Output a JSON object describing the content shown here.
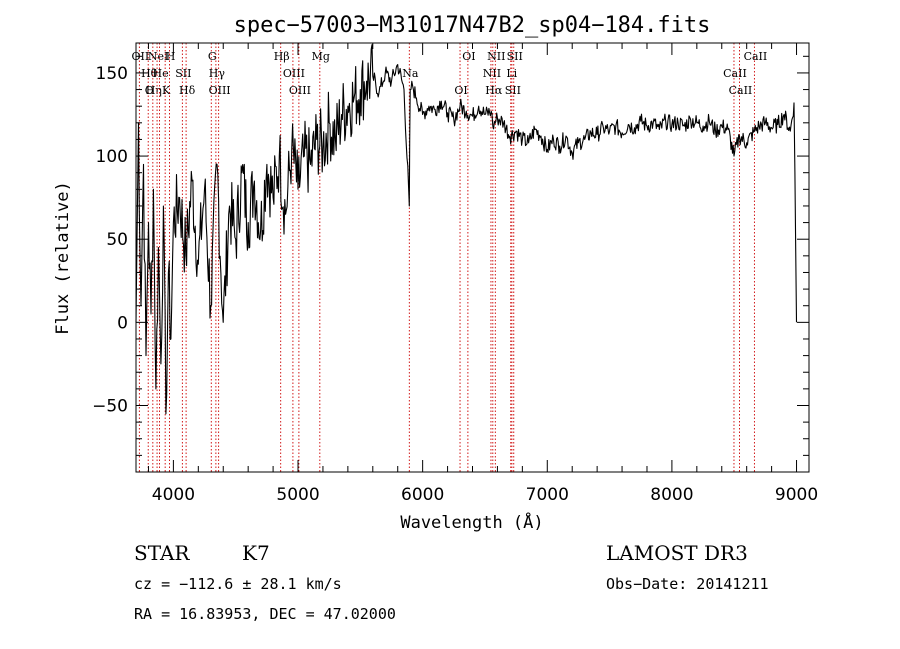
{
  "chart_data": {
    "type": "line",
    "title": "spec−57003−M31017N47B2_sp04−184.fits",
    "xlabel": "Wavelength (Å)",
    "ylabel": "Flux (relative)",
    "xlim": [
      3700,
      9100
    ],
    "ylim": [
      -90,
      168
    ],
    "x_ticks": [
      4000,
      5000,
      6000,
      7000,
      8000,
      9000
    ],
    "x_tick_labels": [
      "4000",
      "5000",
      "6000",
      "7000",
      "8000",
      "9000"
    ],
    "y_ticks": [
      -50,
      0,
      50,
      100,
      150
    ],
    "y_tick_labels": [
      "−50",
      "0",
      "50",
      "100",
      "150"
    ],
    "line_color": "#000000",
    "marker_color": "#cc0000",
    "series": [
      {
        "name": "flux",
        "x": [
          3700,
          3720,
          3740,
          3760,
          3780,
          3800,
          3820,
          3840,
          3860,
          3880,
          3900,
          3920,
          3940,
          3960,
          3980,
          4000,
          4050,
          4100,
          4150,
          4200,
          4250,
          4300,
          4350,
          4400,
          4450,
          4500,
          4550,
          4600,
          4650,
          4700,
          4750,
          4800,
          4850,
          4900,
          4950,
          5000,
          5050,
          5100,
          5150,
          5200,
          5250,
          5300,
          5350,
          5400,
          5450,
          5500,
          5550,
          5600,
          5650,
          5700,
          5750,
          5800,
          5850,
          5893,
          5900,
          5920,
          5950,
          6000,
          6050,
          6100,
          6150,
          6200,
          6250,
          6300,
          6350,
          6400,
          6450,
          6500,
          6550,
          6563,
          6600,
          6650,
          6700,
          6750,
          6800,
          6850,
          6900,
          6950,
          7000,
          7050,
          7100,
          7150,
          7200,
          7250,
          7300,
          7350,
          7400,
          7450,
          7500,
          7550,
          7600,
          7650,
          7700,
          7750,
          7800,
          7850,
          7900,
          7950,
          8000,
          8050,
          8100,
          8150,
          8200,
          8250,
          8300,
          8350,
          8400,
          8450,
          8498,
          8542,
          8600,
          8662,
          8700,
          8750,
          8800,
          8850,
          8900,
          8950,
          8980,
          9000
        ],
        "values": [
          0,
          120,
          10,
          95,
          -20,
          60,
          5,
          80,
          -40,
          45,
          -25,
          70,
          -55,
          30,
          -10,
          60,
          75,
          40,
          85,
          35,
          80,
          10,
          95,
          0,
          70,
          50,
          90,
          60,
          85,
          55,
          95,
          75,
          100,
          65,
          105,
          80,
          100,
          95,
          110,
          105,
          120,
          110,
          125,
          130,
          135,
          140,
          145,
          148,
          138,
          150,
          145,
          155,
          140,
          70,
          140,
          142,
          135,
          125,
          130,
          128,
          133,
          126,
          122,
          130,
          127,
          124,
          130,
          125,
          127,
          118,
          123,
          120,
          112,
          115,
          110,
          108,
          116,
          112,
          104,
          110,
          106,
          112,
          102,
          108,
          110,
          114,
          113,
          117,
          115,
          118,
          114,
          119,
          117,
          121,
          118,
          120,
          116,
          121,
          119,
          120,
          118,
          122,
          120,
          118,
          121,
          115,
          118,
          116,
          100,
          112,
          108,
          115,
          118,
          120,
          117,
          119,
          125,
          115,
          132,
          0
        ]
      }
    ],
    "line_markers": [
      {
        "wavelength": 3727,
        "labels": [
          "OII"
        ]
      },
      {
        "wavelength": 3798,
        "labels": [
          "Hθ",
          "O"
        ]
      },
      {
        "wavelength": 3835,
        "labels": [
          "Hη"
        ]
      },
      {
        "wavelength": 3869,
        "labels": [
          "NeI"
        ]
      },
      {
        "wavelength": 3889,
        "labels": [
          "He"
        ]
      },
      {
        "wavelength": 3934,
        "labels": [
          "K"
        ]
      },
      {
        "wavelength": 3969,
        "labels": [
          "H"
        ]
      },
      {
        "wavelength": 4072,
        "labels": [
          "SII"
        ]
      },
      {
        "wavelength": 4102,
        "labels": [
          "Hδ"
        ]
      },
      {
        "wavelength": 4304,
        "labels": [
          "G"
        ]
      },
      {
        "wavelength": 4341,
        "labels": [
          "Hγ"
        ]
      },
      {
        "wavelength": 4363,
        "labels": [
          "OIII"
        ]
      },
      {
        "wavelength": 4861,
        "labels": [
          "Hβ"
        ]
      },
      {
        "wavelength": 4959,
        "labels": [
          "OIII"
        ]
      },
      {
        "wavelength": 5007,
        "labels": [
          "OIII"
        ]
      },
      {
        "wavelength": 5175,
        "labels": [
          "Mg"
        ]
      },
      {
        "wavelength": 5893,
        "labels": [
          "Na"
        ]
      },
      {
        "wavelength": 6300,
        "labels": [
          "OI"
        ]
      },
      {
        "wavelength": 6363,
        "labels": [
          "OI"
        ]
      },
      {
        "wavelength": 6548,
        "labels": [
          "NII"
        ]
      },
      {
        "wavelength": 6563,
        "labels": [
          "Hα"
        ]
      },
      {
        "wavelength": 6583,
        "labels": [
          "NII"
        ]
      },
      {
        "wavelength": 6707,
        "labels": [
          "Li"
        ]
      },
      {
        "wavelength": 6716,
        "labels": [
          "SII"
        ]
      },
      {
        "wavelength": 6731,
        "labels": [
          "SII"
        ]
      },
      {
        "wavelength": 8498,
        "labels": [
          "CaII"
        ]
      },
      {
        "wavelength": 8542,
        "labels": [
          "CaII"
        ]
      },
      {
        "wavelength": 8662,
        "labels": [
          "CaII"
        ]
      }
    ]
  },
  "info": {
    "object_class": "STAR",
    "subclass": "K7",
    "survey": "LAMOST DR3",
    "cz": "cz = −112.6 ± 28.1 km/s",
    "obs_date": "Obs−Date: 20141211",
    "coords": "RA =  16.83953, DEC =  47.02000"
  }
}
